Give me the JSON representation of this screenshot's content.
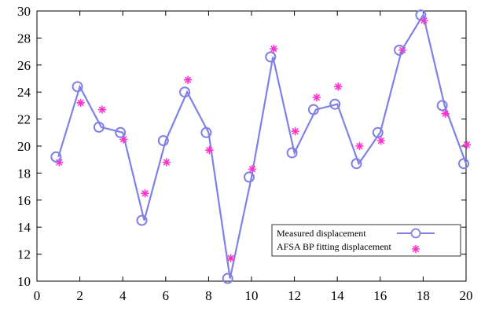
{
  "chart_data": {
    "type": "line",
    "title": "",
    "xlabel": "",
    "ylabel": "",
    "xlim": [
      0,
      20
    ],
    "ylim": [
      10,
      30
    ],
    "x_ticks": [
      "0",
      "2",
      "4",
      "6",
      "8",
      "10",
      "12",
      "14",
      "16",
      "18",
      "20"
    ],
    "y_ticks": [
      "10",
      "12",
      "14",
      "16",
      "18",
      "20",
      "22",
      "24",
      "26",
      "28",
      "30"
    ],
    "grid": false,
    "legend_position": "bottom-right",
    "series": [
      {
        "name": "Measured displacement",
        "style": "line-with-circle-markers",
        "color": "#8080e6",
        "x": [
          1,
          2,
          3,
          4,
          5,
          6,
          7,
          8,
          9,
          10,
          11,
          12,
          13,
          14,
          15,
          16,
          17,
          18,
          19,
          20
        ],
        "y": [
          19.2,
          24.4,
          21.4,
          21.0,
          14.5,
          20.4,
          24.0,
          21.0,
          10.2,
          17.7,
          26.6,
          19.5,
          22.7,
          23.1,
          18.7,
          21.0,
          27.1,
          29.7,
          23.0,
          18.7
        ]
      },
      {
        "name": "AFSA BP fitting displacement",
        "style": "asterisk-markers",
        "color": "#ff33cc",
        "x": [
          1,
          2,
          3,
          4,
          5,
          6,
          7,
          8,
          9,
          10,
          11,
          12,
          13,
          14,
          15,
          16,
          17,
          18,
          19,
          20
        ],
        "y": [
          18.8,
          23.2,
          22.7,
          20.5,
          16.5,
          18.8,
          24.9,
          19.7,
          11.7,
          18.3,
          27.2,
          21.1,
          23.6,
          24.4,
          20.0,
          20.4,
          27.1,
          29.3,
          22.4,
          20.1
        ]
      }
    ]
  }
}
